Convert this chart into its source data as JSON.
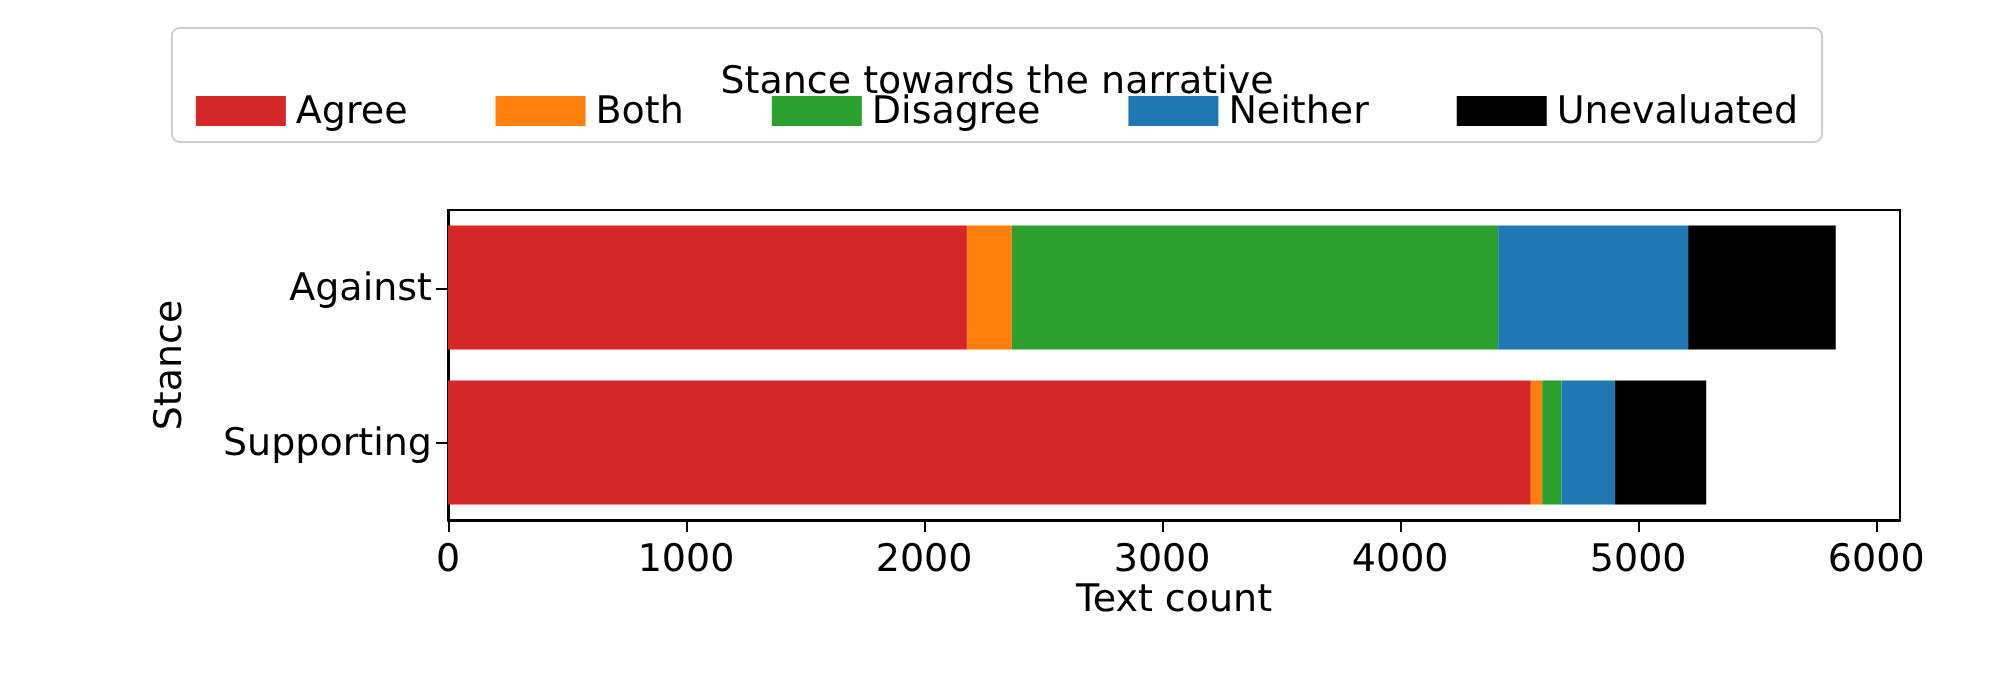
{
  "chart_data": {
    "type": "bar",
    "orientation": "horizontal",
    "stacked": true,
    "xlabel": "Text count",
    "ylabel": "Stance",
    "legend_title": "Stance towards the narrative",
    "legend": "top",
    "grid": false,
    "categories": [
      "Against",
      "Supporting"
    ],
    "xlim": [
      0,
      6100
    ],
    "xticks": [
      0,
      1000,
      2000,
      3000,
      4000,
      5000,
      6000
    ],
    "series": [
      {
        "name": "Agree",
        "color": "#d62728",
        "values": [
          2180,
          4549
        ]
      },
      {
        "name": "Both",
        "color": "#ff7f0e",
        "values": [
          189,
          48
        ]
      },
      {
        "name": "Disagree",
        "color": "#2ca02c",
        "values": [
          2043,
          81
        ]
      },
      {
        "name": "Neither",
        "color": "#1f77b4",
        "values": [
          798,
          225
        ]
      },
      {
        "name": "Unevaluated",
        "color": "#000000",
        "values": [
          620,
          383
        ]
      }
    ]
  }
}
